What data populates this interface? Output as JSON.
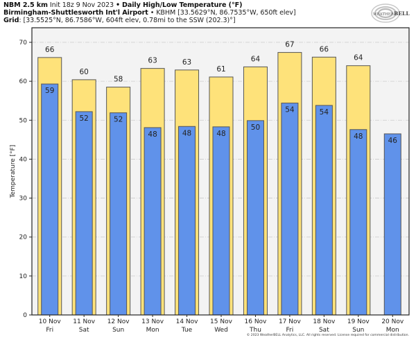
{
  "header": {
    "model": "NBM 2.5 km",
    "init": "Init 18z 9 Nov 2023",
    "separator": "•",
    "product": "Daily High/Low Temperature (°F)",
    "station_name": "Birmingham-Shuttlesworth Int'l Airport",
    "station_info": "KBHM [33.5629°N, 86.7535°W, 650ft elev]",
    "grid_label": "Grid",
    "grid_info": ": [33.5525°N, 86.7586°W, 604ft elev, 0.78mi to the SSW (202.3)°]"
  },
  "logo": {
    "text_a": "WEATHER",
    "text_b": "BELL",
    "icon": "weatherbell-swirl-logo"
  },
  "copyright": "© 2023 WeatherBELL Analytics, LLC. All rights reserved. License required for commercial distribution.",
  "colors": {
    "high": "#fee27a",
    "low": "#6092ea",
    "plot_bg": "#f3f3f3",
    "bar_edge": "#555555",
    "grid": "#cccccc"
  },
  "chart_data": {
    "type": "bar",
    "title": "Daily High/Low Temperature (°F)",
    "xlabel": "",
    "ylabel": "Temperature [°F]",
    "ylim": [
      0,
      73
    ],
    "yticks": [
      0,
      10,
      20,
      30,
      40,
      50,
      60,
      70
    ],
    "grid": true,
    "categories": [
      {
        "date": "10 Nov",
        "day": "Fri"
      },
      {
        "date": "11 Nov",
        "day": "Sat"
      },
      {
        "date": "12 Nov",
        "day": "Sun"
      },
      {
        "date": "13 Nov",
        "day": "Mon"
      },
      {
        "date": "14 Nov",
        "day": "Tue"
      },
      {
        "date": "15 Nov",
        "day": "Wed"
      },
      {
        "date": "16 Nov",
        "day": "Thu"
      },
      {
        "date": "17 Nov",
        "day": "Fri"
      },
      {
        "date": "18 Nov",
        "day": "Sat"
      },
      {
        "date": "19 Nov",
        "day": "Sun"
      },
      {
        "date": "20 Nov",
        "day": "Mon"
      }
    ],
    "series": [
      {
        "name": "High",
        "values": [
          66.1,
          60.4,
          58.5,
          63.3,
          62.9,
          61.1,
          63.7,
          67.4,
          66.2,
          64.0,
          null
        ],
        "labels": [
          "66",
          "60",
          "58",
          "63",
          "63",
          "61",
          "64",
          "67",
          "66",
          "64",
          null
        ]
      },
      {
        "name": "Low",
        "values": [
          59.3,
          52.2,
          51.9,
          48.1,
          48.4,
          48.3,
          49.9,
          54.4,
          53.8,
          47.6,
          46.5
        ],
        "labels": [
          "59",
          "52",
          "52",
          "48",
          "48",
          "48",
          "50",
          "54",
          "54",
          "48",
          "46"
        ]
      }
    ]
  }
}
